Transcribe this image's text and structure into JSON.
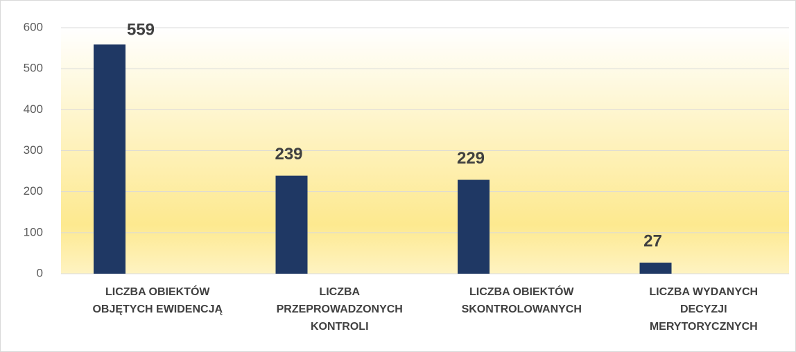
{
  "chart_data": {
    "type": "bar",
    "categories": [
      [
        "LICZBA OBIEKTÓW",
        "OBJĘTYCH EWIDENCJĄ"
      ],
      [
        "LICZBA",
        "PRZEPROWADZONYCH",
        "KONTROLI"
      ],
      [
        "LICZBA OBIEKTÓW",
        "SKONTROLOWANYCH"
      ],
      [
        "LICZBA WYDANYCH",
        "DECYZJI",
        "MERYTORYCZNYCH"
      ]
    ],
    "values": [
      559,
      239,
      229,
      27
    ],
    "color": "#1f3864",
    "ylim": [
      0,
      600
    ],
    "yticks": [
      0,
      100,
      200,
      300,
      400,
      500,
      600
    ],
    "grid": true
  }
}
